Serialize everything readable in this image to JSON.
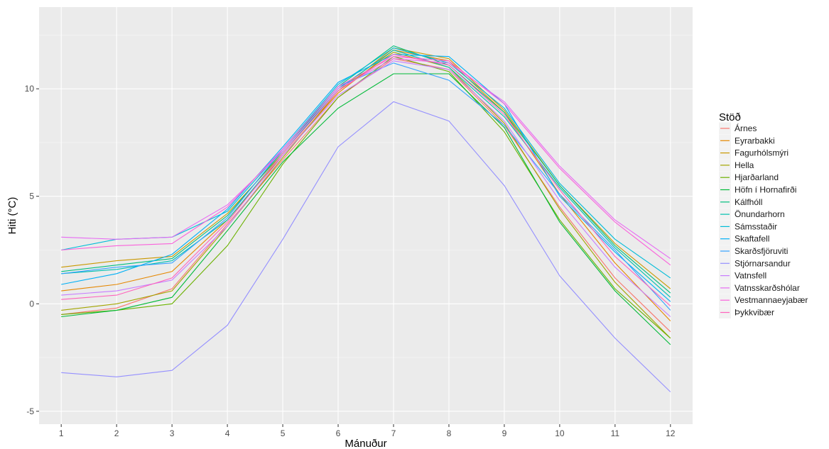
{
  "chart_data": {
    "type": "line",
    "xlabel": "Mánuður",
    "ylabel": "Hiti (°C)",
    "x": [
      1,
      2,
      3,
      4,
      5,
      6,
      7,
      8,
      9,
      10,
      11,
      12
    ],
    "xlim": [
      0.6,
      12.4
    ],
    "ylim": [
      -5.6,
      13.8
    ],
    "x_ticks": [
      1,
      2,
      3,
      4,
      5,
      6,
      7,
      8,
      9,
      10,
      11,
      12
    ],
    "y_ticks": [
      -5,
      0,
      5,
      10
    ],
    "grid": true,
    "legend": {
      "title": "Stöð",
      "placement": "right"
    },
    "series": [
      {
        "name": "Árnes",
        "color": "#F8766D",
        "values": [
          -0.5,
          -0.2,
          0.7,
          3.7,
          6.7,
          9.6,
          11.4,
          10.9,
          8.3,
          4.5,
          1.2,
          -1.3
        ]
      },
      {
        "name": "Eyrarbakki",
        "color": "#E58700",
        "values": [
          0.6,
          0.9,
          1.5,
          3.9,
          6.9,
          9.8,
          11.8,
          11.3,
          8.9,
          5.1,
          1.9,
          -0.8
        ]
      },
      {
        "name": "Fagurhólsmýri",
        "color": "#C99800",
        "values": [
          1.7,
          2.0,
          2.2,
          4.2,
          7.0,
          9.9,
          11.9,
          11.4,
          9.0,
          5.5,
          2.8,
          0.7
        ]
      },
      {
        "name": "Hella",
        "color": "#A3A500",
        "values": [
          -0.3,
          0.0,
          0.6,
          3.6,
          6.8,
          9.9,
          11.7,
          11.0,
          8.4,
          4.4,
          1.0,
          -1.6
        ]
      },
      {
        "name": "Hjarðarland",
        "color": "#6BB100",
        "values": [
          -0.5,
          -0.3,
          0.0,
          2.7,
          6.5,
          9.6,
          11.5,
          10.8,
          8.0,
          3.9,
          0.7,
          -1.6
        ]
      },
      {
        "name": "Höfn í Hornafirði",
        "color": "#00BA38",
        "values": [
          -0.6,
          -0.3,
          0.3,
          3.4,
          6.6,
          9.1,
          10.7,
          10.7,
          8.2,
          3.8,
          0.6,
          -1.9
        ]
      },
      {
        "name": "Kálfhóll",
        "color": "#00BF7D",
        "values": [
          1.5,
          1.8,
          2.1,
          4.1,
          7.1,
          10.1,
          12.0,
          11.1,
          8.9,
          5.5,
          2.7,
          0.5
        ]
      },
      {
        "name": "Önundarhorn",
        "color": "#00C0AF",
        "values": [
          1.4,
          1.6,
          2.0,
          3.9,
          7.0,
          10.0,
          11.8,
          11.0,
          8.7,
          5.4,
          2.6,
          0.3
        ]
      },
      {
        "name": "Sámsstaðir",
        "color": "#00BCD8",
        "values": [
          2.5,
          3.0,
          3.1,
          4.3,
          7.2,
          10.2,
          11.9,
          11.2,
          9.1,
          5.6,
          3.0,
          1.2
        ]
      },
      {
        "name": "Skaftafell",
        "color": "#00B0F6",
        "values": [
          0.9,
          1.4,
          2.3,
          4.4,
          7.3,
          10.3,
          11.6,
          11.5,
          9.3,
          5.0,
          2.4,
          0.1
        ]
      },
      {
        "name": "Skarðsfjöruviti",
        "color": "#35A2FF",
        "values": [
          1.4,
          1.7,
          1.9,
          4.0,
          7.2,
          10.1,
          11.2,
          10.4,
          8.3,
          5.1,
          2.5,
          -0.3
        ]
      },
      {
        "name": "Stjórnarsandur",
        "color": "#9590FF",
        "values": [
          -3.2,
          -3.4,
          -3.1,
          -1.0,
          3.0,
          7.3,
          9.4,
          8.5,
          5.5,
          1.3,
          -1.6,
          -4.1
        ]
      },
      {
        "name": "Vatnsfell",
        "color": "#C77CFF",
        "values": [
          0.4,
          0.6,
          1.1,
          3.6,
          6.9,
          9.7,
          11.3,
          10.9,
          8.5,
          4.8,
          1.7,
          -0.6
        ]
      },
      {
        "name": "Vatnsskarðshólar",
        "color": "#E76BF3",
        "values": [
          3.1,
          3.0,
          3.1,
          4.6,
          7.1,
          10.0,
          11.4,
          11.2,
          9.4,
          6.4,
          3.9,
          2.1
        ]
      },
      {
        "name": "Vestmannaeyjabær",
        "color": "#FA62DB",
        "values": [
          2.5,
          2.7,
          2.8,
          4.5,
          7.2,
          10.1,
          11.5,
          11.3,
          9.3,
          6.3,
          3.8,
          1.8
        ]
      },
      {
        "name": "Þykkvibær",
        "color": "#FF62BC",
        "values": [
          0.2,
          0.4,
          1.2,
          3.8,
          7.0,
          9.9,
          11.6,
          11.1,
          8.8,
          5.3,
          2.2,
          -0.1
        ]
      }
    ]
  }
}
